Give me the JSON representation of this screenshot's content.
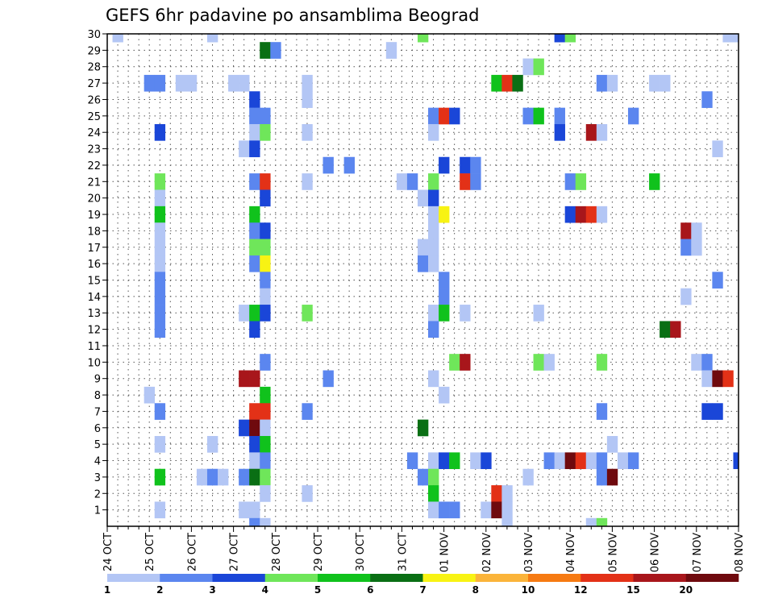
{
  "chart_data": {
    "type": "heatmap",
    "title": "GEFS 6hr padavine po ansamblima Beograd",
    "xlabel": "",
    "ylabel": "",
    "x_ticks": [
      "24 OCT",
      "25 OCT",
      "26 OCT",
      "27 OCT",
      "28 OCT",
      "29 OCT",
      "30 OCT",
      "31 OCT",
      "01 NOV",
      "02 NOV",
      "03 NOV",
      "04 NOV",
      "05 NOV",
      "06 NOV",
      "07 NOV",
      "08 NOV"
    ],
    "y_ticks": [
      "1",
      "2",
      "3",
      "4",
      "5",
      "6",
      "7",
      "8",
      "9",
      "10",
      "11",
      "12",
      "13",
      "14",
      "15",
      "16",
      "17",
      "18",
      "19",
      "20",
      "21",
      "22",
      "23",
      "24",
      "25",
      "26",
      "27",
      "28",
      "29",
      "30"
    ],
    "x_range_steps": [
      0,
      60
    ],
    "steps_per_day": 4,
    "y_range": [
      0,
      30
    ],
    "grid": true,
    "colorbar": {
      "labels": [
        "1",
        "2",
        "3",
        "4",
        "5",
        "6",
        "7",
        "8",
        "10",
        "12",
        "15",
        "20"
      ],
      "colors": [
        "#b3c6f5",
        "#5b86ef",
        "#1a46d8",
        "#6fe65a",
        "#10c21c",
        "#0a6f14",
        "#f8f313",
        "#fbb43a",
        "#f67a12",
        "#e33117",
        "#a8161b",
        "#6f0a0e"
      ]
    },
    "cells": [
      [
        1,
        30,
        0
      ],
      [
        10,
        30,
        0
      ],
      [
        30,
        30,
        3
      ],
      [
        59,
        30,
        0
      ],
      [
        60,
        30,
        0
      ],
      [
        43,
        30,
        2
      ],
      [
        44,
        30,
        3
      ],
      [
        27,
        29,
        0
      ],
      [
        15,
        29,
        5
      ],
      [
        16,
        29,
        1
      ],
      [
        40,
        28,
        0
      ],
      [
        41,
        28,
        3
      ],
      [
        4,
        27,
        1
      ],
      [
        5,
        27,
        1
      ],
      [
        7,
        27,
        0
      ],
      [
        8,
        27,
        0
      ],
      [
        12,
        27,
        0
      ],
      [
        13,
        27,
        0
      ],
      [
        19,
        27,
        0
      ],
      [
        37,
        27,
        4
      ],
      [
        38,
        27,
        9
      ],
      [
        39,
        27,
        5
      ],
      [
        47,
        27,
        1
      ],
      [
        48,
        27,
        0
      ],
      [
        52,
        27,
        0
      ],
      [
        53,
        27,
        0
      ],
      [
        14,
        26,
        2
      ],
      [
        19,
        26,
        0
      ],
      [
        57,
        26,
        1
      ],
      [
        14,
        25,
        1
      ],
      [
        15,
        25,
        1
      ],
      [
        31,
        25,
        1
      ],
      [
        32,
        25,
        9
      ],
      [
        33,
        25,
        2
      ],
      [
        40,
        25,
        1
      ],
      [
        41,
        25,
        4
      ],
      [
        43,
        25,
        1
      ],
      [
        50,
        25,
        1
      ],
      [
        5,
        24,
        2
      ],
      [
        14,
        24,
        0
      ],
      [
        15,
        24,
        3
      ],
      [
        19,
        24,
        0
      ],
      [
        31,
        24,
        0
      ],
      [
        43,
        24,
        2
      ],
      [
        46,
        24,
        10
      ],
      [
        47,
        24,
        0
      ],
      [
        13,
        23,
        0
      ],
      [
        14,
        23,
        2
      ],
      [
        58,
        23,
        0
      ],
      [
        21,
        22,
        1
      ],
      [
        23,
        22,
        1
      ],
      [
        32,
        22,
        2
      ],
      [
        34,
        22,
        2
      ],
      [
        35,
        22,
        1
      ],
      [
        5,
        21,
        3
      ],
      [
        14,
        21,
        1
      ],
      [
        15,
        21,
        9
      ],
      [
        19,
        21,
        0
      ],
      [
        28,
        21,
        0
      ],
      [
        29,
        21,
        1
      ],
      [
        31,
        21,
        3
      ],
      [
        34,
        21,
        9
      ],
      [
        35,
        21,
        1
      ],
      [
        44,
        21,
        1
      ],
      [
        45,
        21,
        3
      ],
      [
        52,
        21,
        4
      ],
      [
        5,
        20,
        0
      ],
      [
        15,
        20,
        2
      ],
      [
        30,
        20,
        0
      ],
      [
        31,
        20,
        2
      ],
      [
        5,
        19,
        4
      ],
      [
        14,
        19,
        4
      ],
      [
        31,
        19,
        0
      ],
      [
        32,
        19,
        6
      ],
      [
        44,
        19,
        2
      ],
      [
        45,
        19,
        10
      ],
      [
        46,
        19,
        9
      ],
      [
        47,
        19,
        0
      ],
      [
        5,
        18,
        0
      ],
      [
        14,
        18,
        1
      ],
      [
        15,
        18,
        2
      ],
      [
        31,
        18,
        0
      ],
      [
        55,
        18,
        10
      ],
      [
        56,
        18,
        0
      ],
      [
        5,
        17,
        0
      ],
      [
        14,
        17,
        3
      ],
      [
        15,
        17,
        3
      ],
      [
        30,
        17,
        0
      ],
      [
        31,
        17,
        0
      ],
      [
        55,
        17,
        1
      ],
      [
        56,
        17,
        0
      ],
      [
        5,
        16,
        0
      ],
      [
        14,
        16,
        1
      ],
      [
        15,
        16,
        6
      ],
      [
        30,
        16,
        1
      ],
      [
        31,
        16,
        0
      ],
      [
        5,
        15,
        1
      ],
      [
        15,
        15,
        1
      ],
      [
        32,
        15,
        1
      ],
      [
        58,
        15,
        1
      ],
      [
        5,
        14,
        1
      ],
      [
        15,
        14,
        0
      ],
      [
        32,
        14,
        1
      ],
      [
        55,
        14,
        0
      ],
      [
        5,
        13,
        1
      ],
      [
        13,
        13,
        0
      ],
      [
        14,
        13,
        4
      ],
      [
        15,
        13,
        2
      ],
      [
        19,
        13,
        3
      ],
      [
        31,
        13,
        0
      ],
      [
        32,
        13,
        4
      ],
      [
        34,
        13,
        0
      ],
      [
        41,
        13,
        0
      ],
      [
        5,
        12,
        1
      ],
      [
        14,
        12,
        2
      ],
      [
        31,
        12,
        1
      ],
      [
        53,
        12,
        5
      ],
      [
        54,
        12,
        10
      ],
      [
        15,
        10,
        1
      ],
      [
        33,
        10,
        3
      ],
      [
        34,
        10,
        10
      ],
      [
        41,
        10,
        3
      ],
      [
        42,
        10,
        0
      ],
      [
        47,
        10,
        3
      ],
      [
        56,
        10,
        0
      ],
      [
        57,
        10,
        1
      ],
      [
        13,
        9,
        10
      ],
      [
        14,
        9,
        10
      ],
      [
        21,
        9,
        1
      ],
      [
        31,
        9,
        0
      ],
      [
        57,
        9,
        0
      ],
      [
        58,
        9,
        11
      ],
      [
        59,
        9,
        9
      ],
      [
        4,
        8,
        0
      ],
      [
        15,
        8,
        4
      ],
      [
        32,
        8,
        0
      ],
      [
        5,
        7,
        1
      ],
      [
        14,
        7,
        9
      ],
      [
        15,
        7,
        9
      ],
      [
        19,
        7,
        1
      ],
      [
        47,
        7,
        1
      ],
      [
        57,
        7,
        2
      ],
      [
        58,
        7,
        2
      ],
      [
        13,
        6,
        2
      ],
      [
        14,
        6,
        11
      ],
      [
        15,
        6,
        0
      ],
      [
        30,
        6,
        5
      ],
      [
        5,
        5,
        0
      ],
      [
        10,
        5,
        0
      ],
      [
        14,
        5,
        2
      ],
      [
        15,
        5,
        4
      ],
      [
        48,
        5,
        0
      ],
      [
        14,
        4,
        0
      ],
      [
        15,
        4,
        1
      ],
      [
        29,
        4,
        1
      ],
      [
        31,
        4,
        0
      ],
      [
        32,
        4,
        2
      ],
      [
        33,
        4,
        4
      ],
      [
        35,
        4,
        0
      ],
      [
        36,
        4,
        2
      ],
      [
        42,
        4,
        1
      ],
      [
        43,
        4,
        0
      ],
      [
        44,
        4,
        11
      ],
      [
        45,
        4,
        9
      ],
      [
        46,
        4,
        0
      ],
      [
        47,
        4,
        1
      ],
      [
        49,
        4,
        0
      ],
      [
        50,
        4,
        1
      ],
      [
        60,
        4,
        2
      ],
      [
        5,
        3,
        4
      ],
      [
        9,
        3,
        0
      ],
      [
        10,
        3,
        1
      ],
      [
        11,
        3,
        0
      ],
      [
        13,
        3,
        1
      ],
      [
        14,
        3,
        5
      ],
      [
        15,
        3,
        3
      ],
      [
        30,
        3,
        1
      ],
      [
        31,
        3,
        3
      ],
      [
        40,
        3,
        0
      ],
      [
        47,
        3,
        1
      ],
      [
        48,
        3,
        11
      ],
      [
        15,
        2,
        0
      ],
      [
        19,
        2,
        0
      ],
      [
        31,
        2,
        4
      ],
      [
        37,
        2,
        9
      ],
      [
        38,
        2,
        0
      ],
      [
        5,
        1,
        0
      ],
      [
        13,
        1,
        0
      ],
      [
        14,
        1,
        0
      ],
      [
        31,
        1,
        0
      ],
      [
        32,
        1,
        1
      ],
      [
        33,
        1,
        1
      ],
      [
        36,
        1,
        0
      ],
      [
        37,
        1,
        11
      ],
      [
        38,
        1,
        0
      ],
      [
        14,
        0,
        1
      ],
      [
        15,
        0,
        0
      ],
      [
        38,
        0,
        0
      ],
      [
        46,
        0,
        0
      ],
      [
        47,
        0,
        3
      ]
    ]
  }
}
